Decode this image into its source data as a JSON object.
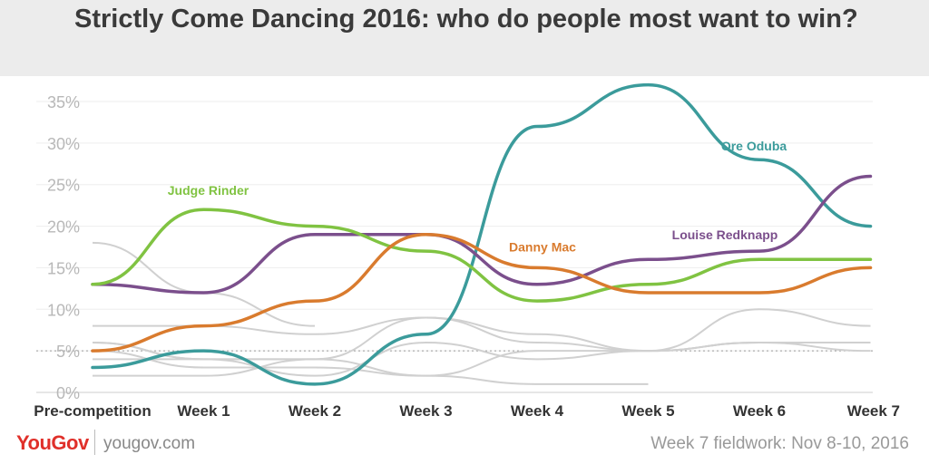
{
  "chart_data": {
    "type": "line",
    "title": "Strictly Come Dancing 2016: who do people most want to win?",
    "categories": [
      "Pre-competition",
      "Week 1",
      "Week 2",
      "Week 3",
      "Week 4",
      "Week 5",
      "Week 6",
      "Week 7"
    ],
    "ylim": [
      0,
      35
    ],
    "y_ticks": [
      "0%",
      "5%",
      "10%",
      "15%",
      "20%",
      "25%",
      "30%",
      "35%"
    ],
    "y_tick_values": [
      0,
      5,
      10,
      15,
      20,
      25,
      30,
      35
    ],
    "reference_line": 5,
    "series": [
      {
        "name": "Ore Oduba",
        "color": "#3b9b9b",
        "label": "Ore Oduba",
        "values": [
          3,
          5,
          1,
          7,
          32,
          37,
          28,
          20
        ]
      },
      {
        "name": "Louise Redknapp",
        "color": "#7b4f8c",
        "label": "Louise Redknapp",
        "values": [
          13,
          12,
          19,
          19,
          13,
          16,
          17,
          26
        ]
      },
      {
        "name": "Judge Rinder",
        "color": "#80c342",
        "label": "Judge Rinder",
        "values": [
          13,
          22,
          20,
          17,
          11,
          13,
          16,
          16
        ]
      },
      {
        "name": "Danny Mac",
        "color": "#d97b2e",
        "label": "Danny Mac",
        "values": [
          5,
          8,
          11,
          19,
          15,
          12,
          12,
          15
        ]
      }
    ],
    "background_series_color": "#d0d0d0",
    "background_series": [
      {
        "values": [
          18,
          12,
          8,
          null,
          null,
          null,
          null,
          null
        ]
      },
      {
        "values": [
          8,
          8,
          7,
          9,
          7,
          5,
          10,
          8
        ]
      },
      {
        "values": [
          6,
          4,
          4,
          9,
          6,
          5,
          6,
          6
        ]
      },
      {
        "values": [
          5,
          3,
          3,
          2,
          5,
          5,
          6,
          5
        ]
      },
      {
        "values": [
          6,
          4,
          2,
          6,
          4,
          5,
          6,
          6
        ]
      },
      {
        "values": [
          4,
          4,
          4,
          2,
          1,
          1,
          null,
          null
        ]
      },
      {
        "values": [
          2,
          2,
          4,
          null,
          null,
          null,
          null,
          null
        ]
      }
    ]
  },
  "footer": {
    "logo": "YouGov",
    "url": "yougov.com",
    "note": "Week 7 fieldwork: Nov 8-10, 2016"
  }
}
